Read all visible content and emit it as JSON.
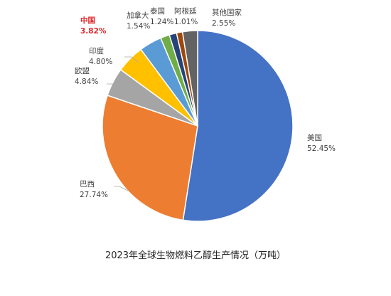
{
  "chart_data": {
    "type": "pie",
    "title": "2023年全球生物燃料乙醇生产情况（万吨）",
    "start_angle_deg": 0,
    "direction": "clockwise",
    "highlight": "中国",
    "slices": [
      {
        "name": "美国",
        "value": 52.45,
        "label": "52.45%",
        "color": "#4472c4"
      },
      {
        "name": "巴西",
        "value": 27.74,
        "label": "27.74%",
        "color": "#ed7d31"
      },
      {
        "name": "欧盟",
        "value": 4.84,
        "label": "4.84%",
        "color": "#a5a5a5"
      },
      {
        "name": "印度",
        "value": 4.8,
        "label": "4.80%",
        "color": "#ffc000"
      },
      {
        "name": "中国",
        "value": 3.82,
        "label": "3.82%",
        "color": "#5b9bd5"
      },
      {
        "name": "加拿大",
        "value": 1.54,
        "label": "1.54%",
        "color": "#70ad47"
      },
      {
        "name": "泰国",
        "value": 1.24,
        "label": "1.24%",
        "color": "#264478"
      },
      {
        "name": "阿根廷",
        "value": 1.01,
        "label": "1.01%",
        "color": "#9e480e"
      },
      {
        "name": "其他国家",
        "value": 2.55,
        "label": "2.55%",
        "color": "#636363"
      }
    ]
  }
}
